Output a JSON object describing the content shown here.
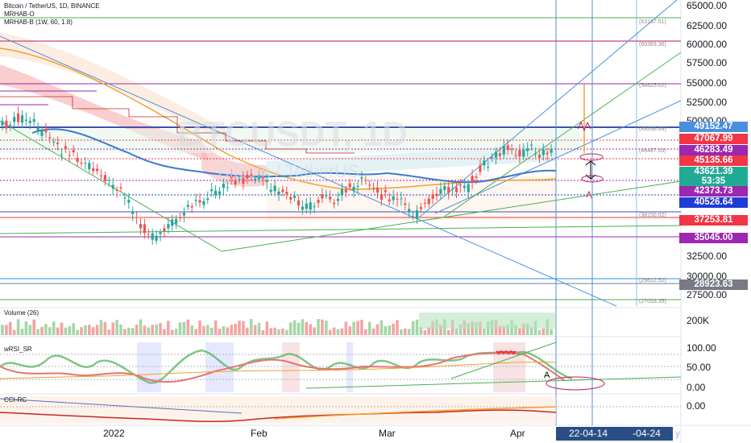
{
  "legend": {
    "title": "Bitcoin / TetherUS, 1D, BINANCE",
    "ind1": "MRHAB-O",
    "ind2": "MRHAB-B (1W, 60, 1.8)"
  },
  "watermark": {
    "symbol": "BTCUSDT, 1D",
    "name": "Bitcoin / TetherUS"
  },
  "price_axis": [
    "65000.00",
    "62500.00",
    "60000.00",
    "57500.00",
    "55000.00",
    "52500.00",
    "50000.00",
    "32500.00",
    "30000.00",
    "27500.00"
  ],
  "price_labels": [
    {
      "text": "49152.47",
      "color": "#4a8fdd"
    },
    {
      "text": "47067.99",
      "color": "#f23645"
    },
    {
      "text": "46283.49",
      "color": "#9c27b0"
    },
    {
      "text": "45135.66",
      "color": "#f23645"
    },
    {
      "text": "43621.39",
      "color": "#22ab94"
    },
    {
      "text": "53:35",
      "color": "#22ab94"
    },
    {
      "text": "42373.73",
      "color": "#9c27b0"
    },
    {
      "text": "40526.64",
      "color": "#1e3cd6"
    },
    {
      "text": "37253.81",
      "color": "#f23645"
    },
    {
      "text": "35045.00",
      "color": "#9c27b0"
    },
    {
      "text": "28923.63",
      "color": "#787b86"
    }
  ],
  "levels": [
    "(63167.51)",
    "(60383.36)",
    "(54825.02)",
    "(49266.69)",
    "(46487.53)",
    "(38150.02)",
    "(29812.52)",
    "(27033.35)"
  ],
  "volume": {
    "title": "Volume (26)",
    "axis": "200K"
  },
  "rsi": {
    "title": "wRSI_SR",
    "axis": [
      "100.00",
      "50.00",
      "0.00"
    ],
    "annotation": "A"
  },
  "cci": {
    "title": "CCI-RC",
    "axis": "0.00"
  },
  "time_axis": [
    "2022",
    "Feb",
    "Mar",
    "Apr"
  ],
  "date_range": {
    "start": "22-04-14",
    "end": "-04-24"
  },
  "time_tail": "y"
}
